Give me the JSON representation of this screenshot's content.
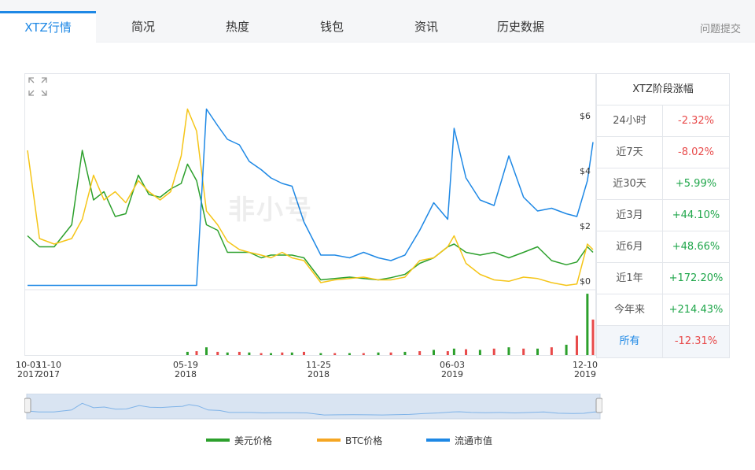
{
  "tabs": [
    {
      "label": "XTZ行情",
      "active": true
    },
    {
      "label": "简况"
    },
    {
      "label": "热度"
    },
    {
      "label": "钱包"
    },
    {
      "label": "资讯"
    },
    {
      "label": "历史数据"
    }
  ],
  "feedback_label": "问题提交",
  "watermark": "非小号",
  "stats": {
    "title": "XTZ阶段涨幅",
    "rows": [
      {
        "label": "24小时",
        "value": "-2.32%"
      },
      {
        "label": "近7天",
        "value": "-8.02%"
      },
      {
        "label": "近30天",
        "value": "+5.99%"
      },
      {
        "label": "近3月",
        "value": "+44.10%"
      },
      {
        "label": "近6月",
        "value": "+48.66%"
      },
      {
        "label": "近1年",
        "value": "+172.20%"
      },
      {
        "label": "今年来",
        "value": "+214.43%"
      },
      {
        "label": "所有",
        "value": "-12.31%",
        "active": true
      }
    ]
  },
  "chart_data": {
    "type": "line",
    "x_ticks": [
      {
        "line1": "10-03",
        "line2": "2017"
      },
      {
        "line1": "11-10",
        "line2": "2017"
      },
      {
        "line1": "05-19",
        "line2": "2018"
      },
      {
        "line1": "11-25",
        "line2": "2018"
      },
      {
        "line1": "06-03",
        "line2": "2019"
      },
      {
        "line1": "12-10",
        "line2": "2019"
      }
    ],
    "y_ticks": [
      "$6",
      "$4",
      "$2",
      "$0"
    ],
    "ylim": [
      0,
      7.2
    ],
    "x": [
      "2017-10-03",
      "2017-10-20",
      "2017-11-10",
      "2017-12-05",
      "2017-12-20",
      "2018-01-05",
      "2018-01-20",
      "2018-02-05",
      "2018-02-20",
      "2018-03-10",
      "2018-03-25",
      "2018-04-10",
      "2018-04-25",
      "2018-05-10",
      "2018-05-19",
      "2018-06-01",
      "2018-06-15",
      "2018-07-01",
      "2018-07-15",
      "2018-08-01",
      "2018-08-15",
      "2018-09-01",
      "2018-09-15",
      "2018-10-01",
      "2018-10-15",
      "2018-11-01",
      "2018-11-25",
      "2018-12-15",
      "2019-01-05",
      "2019-01-25",
      "2019-02-15",
      "2019-03-05",
      "2019-03-25",
      "2019-04-15",
      "2019-05-05",
      "2019-05-25",
      "2019-06-03",
      "2019-06-20",
      "2019-07-10",
      "2019-07-30",
      "2019-08-20",
      "2019-09-10",
      "2019-09-30",
      "2019-10-20",
      "2019-11-10",
      "2019-11-25",
      "2019-12-10",
      "2019-12-18"
    ],
    "series": [
      {
        "name": "美元价格",
        "color": "#2ca02c",
        "values": [
          1.9,
          1.5,
          1.5,
          2.3,
          5.0,
          3.2,
          3.5,
          2.6,
          2.7,
          4.1,
          3.4,
          3.3,
          3.6,
          3.8,
          4.5,
          3.9,
          2.3,
          2.1,
          1.3,
          1.3,
          1.3,
          1.1,
          1.2,
          1.2,
          1.2,
          1.1,
          0.3,
          0.35,
          0.4,
          0.35,
          0.3,
          0.38,
          0.5,
          0.9,
          1.1,
          1.5,
          1.6,
          1.3,
          1.2,
          1.3,
          1.1,
          1.3,
          1.5,
          1.0,
          0.85,
          0.95,
          1.5,
          1.3
        ]
      },
      {
        "name": "BTC价格",
        "color": "#f5c518",
        "values": [
          5.0,
          1.8,
          1.6,
          1.8,
          2.5,
          4.1,
          3.2,
          3.5,
          3.1,
          3.9,
          3.5,
          3.2,
          3.5,
          4.8,
          6.5,
          5.7,
          2.8,
          2.3,
          1.7,
          1.4,
          1.3,
          1.2,
          1.1,
          1.3,
          1.1,
          1.0,
          0.2,
          0.3,
          0.35,
          0.4,
          0.3,
          0.3,
          0.4,
          1.0,
          1.1,
          1.5,
          1.9,
          0.9,
          0.5,
          0.3,
          0.25,
          0.4,
          0.35,
          0.2,
          0.1,
          0.15,
          1.6,
          1.4
        ]
      },
      {
        "name": "流通市值",
        "color": "#1e88e5",
        "values": [
          0.1,
          0.1,
          0.1,
          0.1,
          0.1,
          0.1,
          0.1,
          0.1,
          0.1,
          0.1,
          0.1,
          0.1,
          0.1,
          0.1,
          0.1,
          0.1,
          6.5,
          5.9,
          5.4,
          5.2,
          4.6,
          4.3,
          4.0,
          3.8,
          3.7,
          2.4,
          1.2,
          1.2,
          1.1,
          1.3,
          1.1,
          1.0,
          1.2,
          2.1,
          3.1,
          2.5,
          5.8,
          4.0,
          3.2,
          3.0,
          4.8,
          3.3,
          2.8,
          2.9,
          2.7,
          2.6,
          3.9,
          5.3
        ]
      }
    ],
    "volume_bars": [
      0,
      0,
      0,
      0,
      0,
      0,
      0,
      0,
      0,
      0,
      0,
      0,
      0,
      0,
      0.05,
      0.06,
      0.12,
      0.05,
      0.04,
      0.05,
      0.04,
      0.03,
      0.03,
      0.04,
      0.04,
      0.05,
      0.03,
      0.03,
      0.03,
      0.03,
      0.04,
      0.04,
      0.05,
      0.06,
      0.08,
      0.06,
      0.1,
      0.09,
      0.08,
      0.1,
      0.12,
      0.1,
      0.1,
      0.12,
      0.16,
      0.3,
      0.95,
      0.55
    ],
    "legend_position": "bottom"
  }
}
